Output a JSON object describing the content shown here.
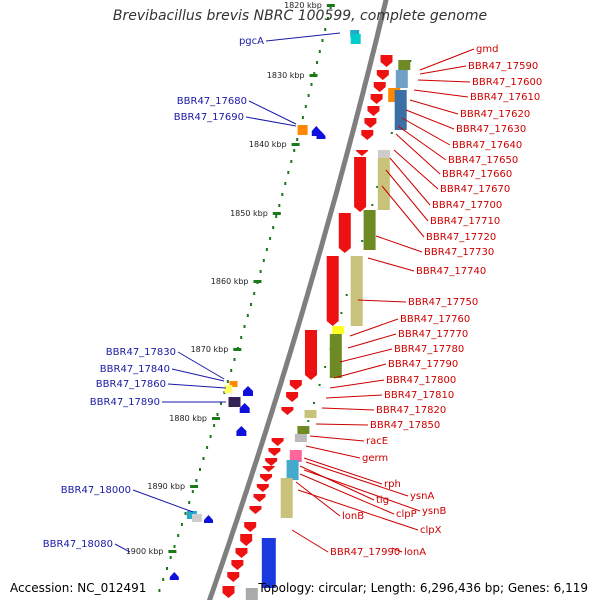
{
  "title": "Brevibacillus brevis NBRC 100599, complete genome",
  "footer": {
    "accession": "Accession: NC_012491",
    "topology": "Topology: circular; Length: 6,296,436 bp; Genes: 6,119"
  },
  "ticks": [
    "1820 kbp",
    "1830 kbp",
    "1840 kbp",
    "1850 kbp",
    "1860 kbp",
    "1870 kbp",
    "1880 kbp",
    "1890 kbp",
    "1900 kbp"
  ],
  "left_labels": [
    {
      "text": "pgcA"
    },
    {
      "text": "BBR47_17680"
    },
    {
      "text": "BBR47_17690"
    },
    {
      "text": "BBR47_17830"
    },
    {
      "text": "BBR47_17840"
    },
    {
      "text": "BBR47_17860"
    },
    {
      "text": "BBR47_17890"
    },
    {
      "text": "BBR47_18000"
    },
    {
      "text": "BBR47_18080"
    }
  ],
  "right_labels": [
    {
      "text": "gmd"
    },
    {
      "text": "BBR47_17590"
    },
    {
      "text": "BBR47_17600"
    },
    {
      "text": "BBR47_17610"
    },
    {
      "text": "BBR47_17620"
    },
    {
      "text": "BBR47_17630"
    },
    {
      "text": "BBR47_17640"
    },
    {
      "text": "BBR47_17650"
    },
    {
      "text": "BBR47_17660"
    },
    {
      "text": "BBR47_17670"
    },
    {
      "text": "BBR47_17700"
    },
    {
      "text": "BBR47_17710"
    },
    {
      "text": "BBR47_17720"
    },
    {
      "text": "BBR47_17730"
    },
    {
      "text": "BBR47_17740"
    },
    {
      "text": "BBR47_17750"
    },
    {
      "text": "BBR47_17760"
    },
    {
      "text": "BBR47_17770"
    },
    {
      "text": "BBR47_17780"
    },
    {
      "text": "BBR47_17790"
    },
    {
      "text": "BBR47_17800"
    },
    {
      "text": "BBR47_17810"
    },
    {
      "text": "BBR47_17820"
    },
    {
      "text": "BBR47_17850"
    },
    {
      "text": "racE"
    },
    {
      "text": "germ"
    },
    {
      "text": "rph"
    },
    {
      "text": "ysnA"
    },
    {
      "text": "tig"
    },
    {
      "text": "ysnB"
    },
    {
      "text": "clpP"
    },
    {
      "text": "lonB"
    },
    {
      "text": "clpX"
    },
    {
      "text": "BBR47_17990"
    },
    {
      "text": "lonA"
    }
  ],
  "colors": {
    "left_label": "#1a1aa6",
    "right_label": "#cc0000",
    "backbone": "#7f7f7f",
    "tick": "#1a7a1a",
    "gene_red": "#ee1111",
    "gene_blue": "#1010dd",
    "band_khaki": "#c8c27a",
    "band_olive": "#6e8a25",
    "band_blue": "#1a3ae0"
  }
}
